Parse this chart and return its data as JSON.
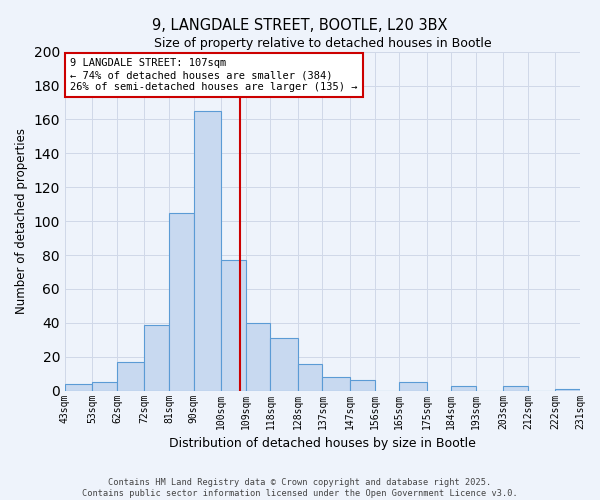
{
  "title": "9, LANGDALE STREET, BOOTLE, L20 3BX",
  "subtitle": "Size of property relative to detached houses in Bootle",
  "xlabel": "Distribution of detached houses by size in Bootle",
  "ylabel": "Number of detached properties",
  "bar_edges": [
    43,
    53,
    62,
    72,
    81,
    90,
    100,
    109,
    118,
    128,
    137,
    147,
    156,
    165,
    175,
    184,
    193,
    203,
    212,
    222,
    231
  ],
  "bar_heights": [
    4,
    5,
    17,
    39,
    105,
    165,
    77,
    40,
    31,
    16,
    8,
    6,
    0,
    5,
    0,
    3,
    0,
    3,
    0,
    1
  ],
  "bar_color": "#c8d9f0",
  "bar_edge_color": "#5b9bd5",
  "vline_x": 107,
  "vline_color": "#cc0000",
  "annotation_title": "9 LANGDALE STREET: 107sqm",
  "annotation_line1": "← 74% of detached houses are smaller (384)",
  "annotation_line2": "26% of semi-detached houses are larger (135) →",
  "annotation_box_color": "#ffffff",
  "annotation_box_edge_color": "#cc0000",
  "ylim": [
    0,
    200
  ],
  "yticks": [
    0,
    20,
    40,
    60,
    80,
    100,
    120,
    140,
    160,
    180,
    200
  ],
  "tick_labels": [
    "43sqm",
    "53sqm",
    "62sqm",
    "72sqm",
    "81sqm",
    "90sqm",
    "100sqm",
    "109sqm",
    "118sqm",
    "128sqm",
    "137sqm",
    "147sqm",
    "156sqm",
    "165sqm",
    "175sqm",
    "184sqm",
    "193sqm",
    "203sqm",
    "212sqm",
    "222sqm",
    "231sqm"
  ],
  "grid_color": "#d0d8e8",
  "bg_color": "#eef3fb",
  "footer1": "Contains HM Land Registry data © Crown copyright and database right 2025.",
  "footer2": "Contains public sector information licensed under the Open Government Licence v3.0."
}
